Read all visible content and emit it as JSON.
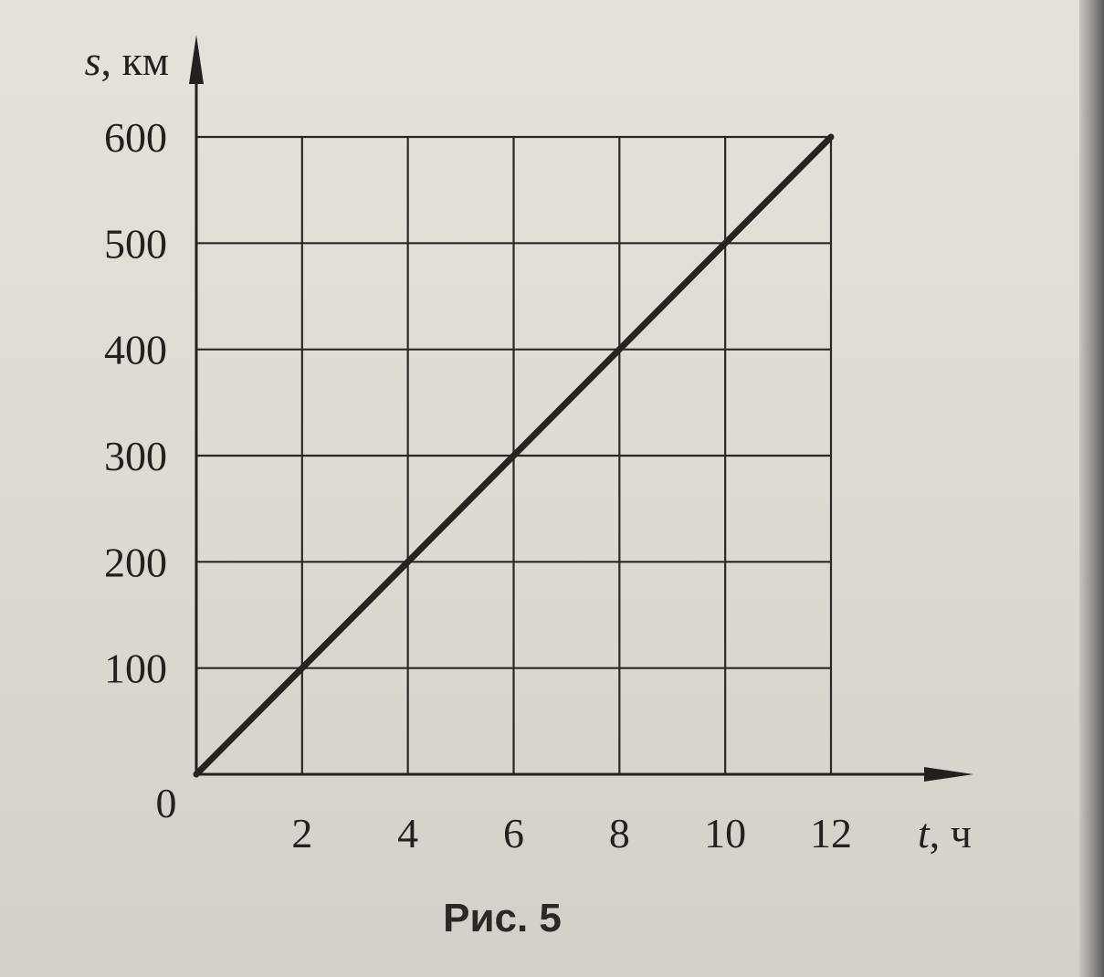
{
  "chart_data": {
    "type": "line",
    "x": [
      0,
      12
    ],
    "series": [
      {
        "values": [
          0,
          600
        ]
      }
    ],
    "x_ticks": [
      "2",
      "4",
      "6",
      "8",
      "10",
      "12"
    ],
    "y_ticks": [
      "100",
      "200",
      "300",
      "400",
      "500",
      "600"
    ],
    "origin_label": "0",
    "xlabel_var": "t",
    "xlabel_unit": ", ч",
    "ylabel_var": "s",
    "ylabel_unit": ", км",
    "xlim": [
      0,
      12
    ],
    "ylim": [
      0,
      600
    ],
    "grid": true,
    "caption": "Рис. 5"
  }
}
